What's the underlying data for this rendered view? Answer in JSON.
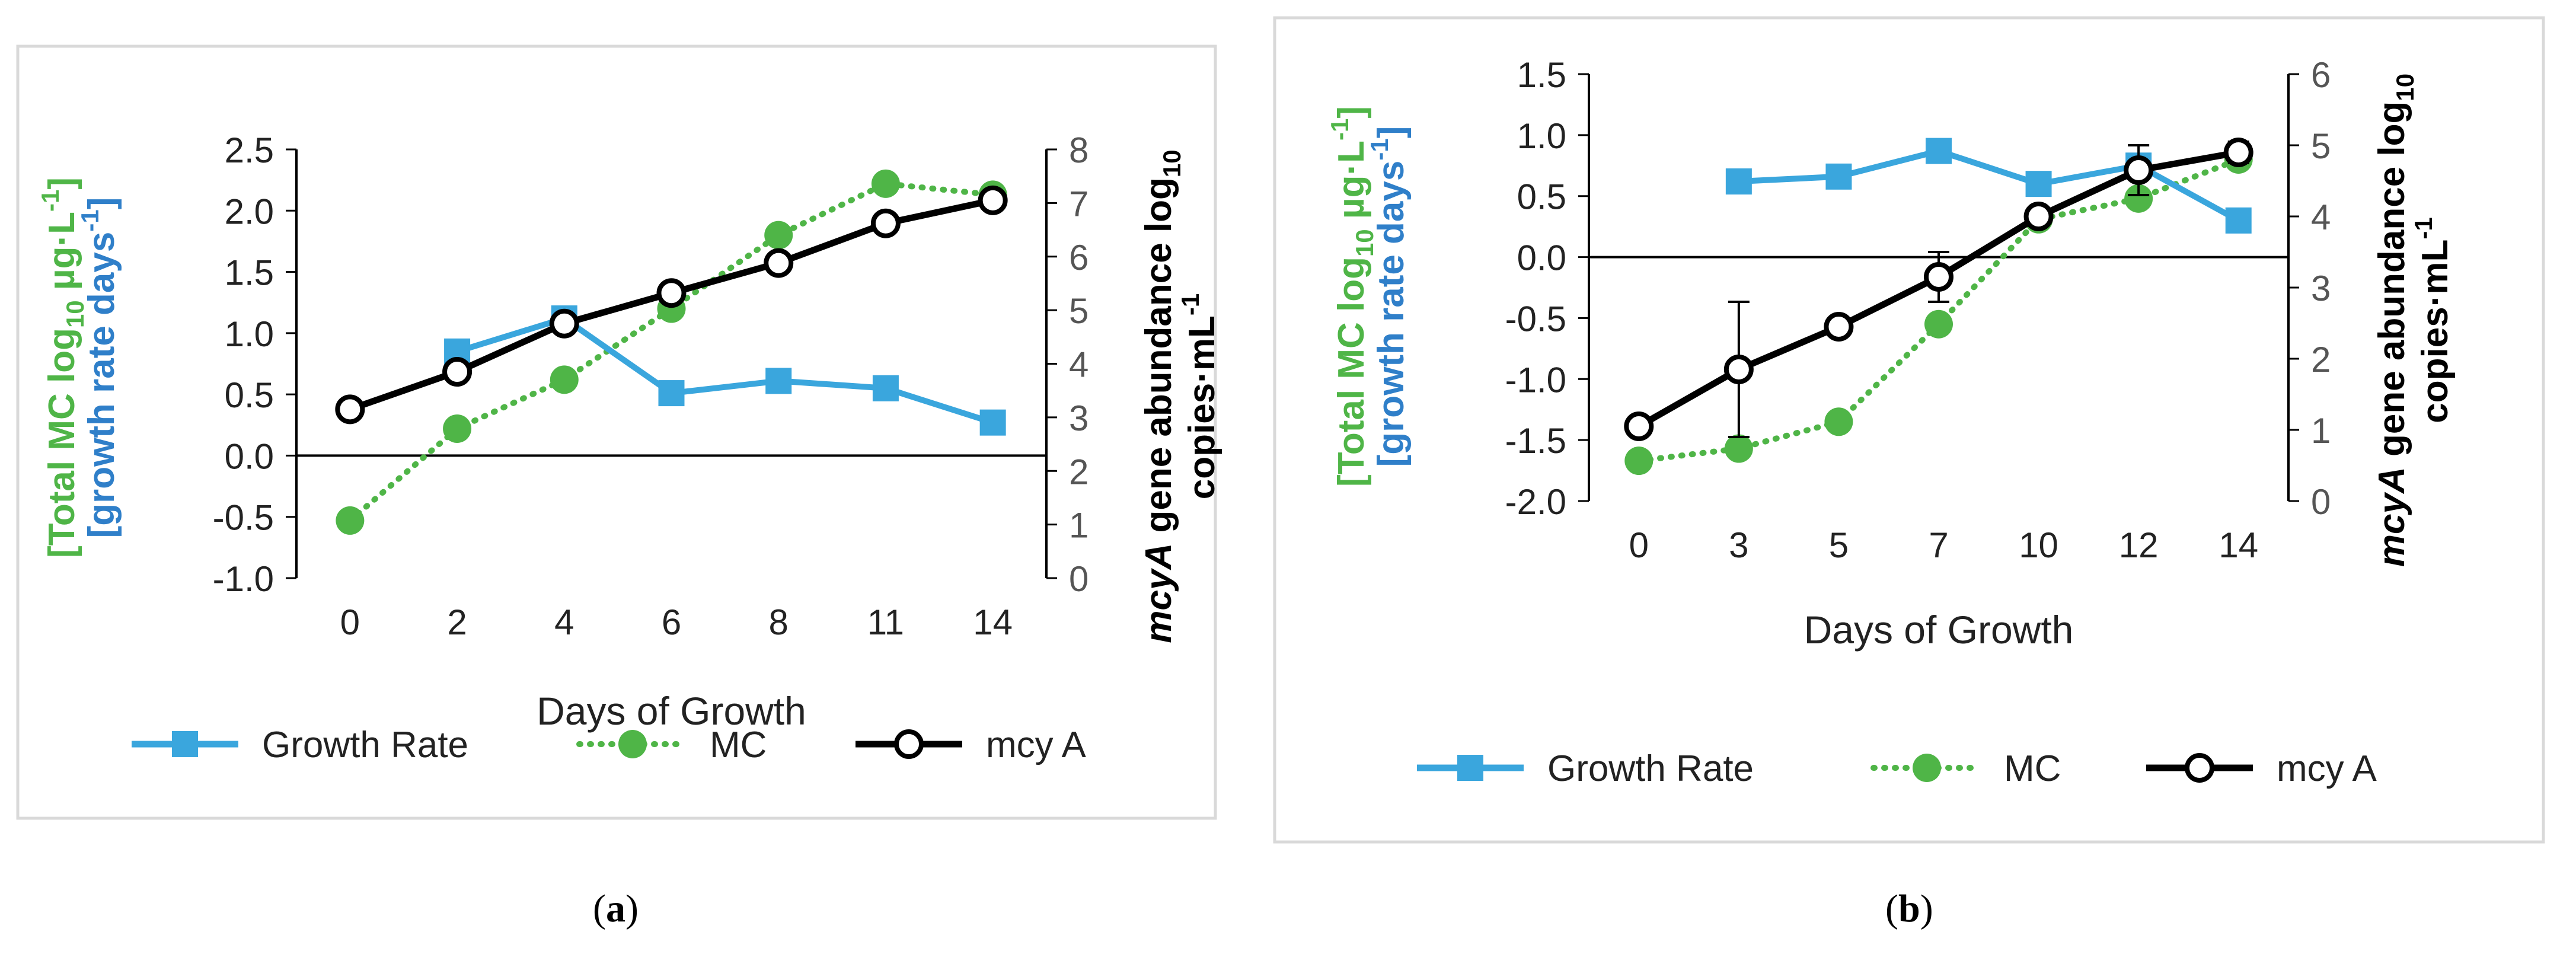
{
  "chart_data": [
    {
      "type": "line",
      "panel_label": "a",
      "caption_open": "(",
      "caption_close": ")",
      "xlabel": "Days of Growth",
      "categories": [
        "0",
        "2",
        "4",
        "6",
        "8",
        "11",
        "14"
      ],
      "y_left_label_line1": "[Total MC log",
      "y_left_label_line1_sub": "10",
      "y_left_label_line1_end": " µg·L",
      "y_left_label_line1_sup": "-1",
      "y_left_label_line1_close": "]",
      "y_left_label_line2": "[growth rate days",
      "y_left_label_line2_sup": "-1",
      "y_left_label_line2_close": "]",
      "y_right_label_line1_italic": "mcyA",
      "y_right_label_line1": " gene abundance log",
      "y_right_label_line1_sub": "10",
      "y_right_label_line2": "copies·mL",
      "y_right_label_line2_sup": "-1",
      "ylim_left": [
        -1.0,
        2.5
      ],
      "yticks_left": [
        "-1.0",
        "-0.5",
        "0.0",
        "0.5",
        "1.0",
        "1.5",
        "2.0",
        "2.5"
      ],
      "ylim_right": [
        0,
        8
      ],
      "yticks_right": [
        "0",
        "1",
        "2",
        "3",
        "4",
        "5",
        "6",
        "7",
        "8"
      ],
      "legend_position": "bottom",
      "series": [
        {
          "name": "Growth Rate",
          "axis": "left",
          "color": "#3aa6dd",
          "marker": "square",
          "line": "solid",
          "values": [
            null,
            0.85,
            1.12,
            0.51,
            0.61,
            0.55,
            0.27
          ]
        },
        {
          "name": "MC",
          "axis": "left",
          "color": "#4fb547",
          "marker": "circle-filled",
          "line": "dotted",
          "values": [
            -0.53,
            0.22,
            0.62,
            1.2,
            1.8,
            2.22,
            2.13
          ]
        },
        {
          "name": "mcy A",
          "axis": "right",
          "color": "#000000",
          "marker": "circle-open",
          "line": "solid",
          "values": [
            3.15,
            3.85,
            4.75,
            5.32,
            5.88,
            6.62,
            7.05
          ]
        }
      ]
    },
    {
      "type": "line",
      "panel_label": "b",
      "caption_open": "(",
      "caption_close": ")",
      "xlabel": "Days of Growth",
      "categories": [
        "0",
        "3",
        "5",
        "7",
        "10",
        "12",
        "14"
      ],
      "y_left_label_line1": "[Total MC log",
      "y_left_label_line1_sub": "10",
      "y_left_label_line1_end": " µg·L",
      "y_left_label_line1_sup": "-1",
      "y_left_label_line1_close": "]",
      "y_left_label_line2": "[growth rate days",
      "y_left_label_line2_sup": "-1",
      "y_left_label_line2_close": "]",
      "y_right_label_line1_italic": "mcyA",
      "y_right_label_line1": " gene abundance log",
      "y_right_label_line1_sub": "10",
      "y_right_label_line2": "copies·mL",
      "y_right_label_line2_sup": "-1",
      "ylim_left": [
        -2.0,
        1.5
      ],
      "yticks_left": [
        "-2.0",
        "-1.5",
        "-1.0",
        "-0.5",
        "0.0",
        "0.5",
        "1.0",
        "1.5"
      ],
      "ylim_right": [
        0,
        6
      ],
      "yticks_right": [
        "0",
        "1",
        "2",
        "3",
        "4",
        "5",
        "6"
      ],
      "legend_position": "bottom",
      "series": [
        {
          "name": "Growth Rate",
          "axis": "left",
          "color": "#3aa6dd",
          "marker": "square",
          "line": "solid",
          "values": [
            null,
            0.62,
            0.66,
            0.87,
            0.6,
            0.75,
            0.3
          ]
        },
        {
          "name": "MC",
          "axis": "left",
          "color": "#4fb547",
          "marker": "circle-filled",
          "line": "dotted",
          "values": [
            -1.67,
            -1.57,
            -1.35,
            -0.55,
            0.31,
            0.48,
            0.8
          ]
        },
        {
          "name": "mcy A",
          "axis": "right",
          "color": "#000000",
          "marker": "circle-open",
          "line": "solid",
          "values": [
            1.05,
            1.85,
            2.45,
            3.15,
            4.0,
            4.65,
            4.9
          ],
          "errors": [
            null,
            0.95,
            null,
            0.35,
            null,
            0.35,
            0.15
          ]
        }
      ]
    }
  ]
}
